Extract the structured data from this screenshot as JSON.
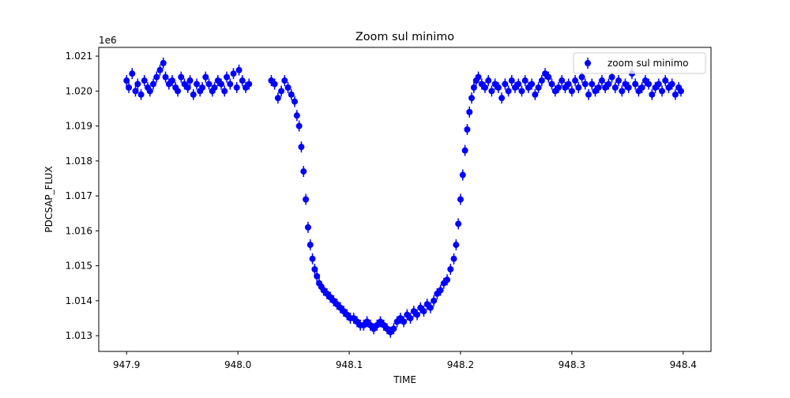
{
  "chart_data": {
    "type": "scatter",
    "title": "Zoom sul minimo",
    "xlabel": "TIME",
    "ylabel": "PDCSAP_FLUX",
    "offset_text": "1e6",
    "xlim": [
      947.875,
      948.425
    ],
    "ylim": [
      1012.55,
      1021.25
    ],
    "y_scale_factor": 1000,
    "xticks": [
      947.9,
      948.0,
      948.1,
      948.2,
      948.3,
      948.4
    ],
    "xtick_labels": [
      "947.9",
      "948.0",
      "948.1",
      "948.2",
      "948.3",
      "948.4"
    ],
    "yticks": [
      1013,
      1014,
      1015,
      1016,
      1017,
      1018,
      1019,
      1020,
      1021
    ],
    "ytick_labels": [
      "1.013",
      "1.014",
      "1.015",
      "1.016",
      "1.017",
      "1.018",
      "1.019",
      "1.020",
      "1.021"
    ],
    "grid": false,
    "legend": {
      "position": "top-right",
      "entries": [
        "zoom sul minimo"
      ]
    },
    "series": [
      {
        "name": "zoom sul minimo",
        "color": "#0000ff",
        "marker": "circle",
        "errorbars": true,
        "x": [
          947.9,
          947.902,
          947.905,
          947.908,
          947.91,
          947.913,
          947.916,
          947.919,
          947.921,
          947.924,
          947.927,
          947.93,
          947.933,
          947.935,
          947.938,
          947.941,
          947.944,
          947.946,
          947.949,
          947.952,
          947.955,
          947.957,
          947.96,
          947.963,
          947.966,
          947.968,
          947.971,
          947.974,
          947.977,
          947.979,
          947.982,
          947.985,
          947.988,
          947.99,
          947.993,
          947.996,
          947.999,
          948.001,
          948.004,
          948.007,
          948.01,
          948.03,
          948.033,
          948.036,
          948.039,
          948.042,
          948.045,
          948.048,
          948.051,
          948.053,
          948.055,
          948.057,
          948.059,
          948.061,
          948.063,
          948.065,
          948.067,
          948.069,
          948.071,
          948.073,
          948.075,
          948.077,
          948.08,
          948.083,
          948.086,
          948.089,
          948.092,
          948.095,
          948.098,
          948.101,
          948.104,
          948.107,
          948.11,
          948.113,
          948.116,
          948.119,
          948.122,
          948.125,
          948.128,
          948.131,
          948.134,
          948.137,
          948.14,
          948.143,
          948.146,
          948.149,
          948.152,
          948.155,
          948.158,
          948.161,
          948.164,
          948.167,
          948.17,
          948.173,
          948.176,
          948.179,
          948.182,
          948.185,
          948.188,
          948.191,
          948.194,
          948.196,
          948.198,
          948.2,
          948.202,
          948.204,
          948.206,
          948.208,
          948.21,
          948.212,
          948.214,
          948.216,
          948.219,
          948.222,
          948.225,
          948.228,
          948.231,
          948.234,
          948.237,
          948.24,
          948.243,
          948.246,
          948.249,
          948.252,
          948.255,
          948.258,
          948.261,
          948.264,
          948.267,
          948.27,
          948.273,
          948.276,
          948.279,
          948.282,
          948.285,
          948.288,
          948.291,
          948.294,
          948.297,
          948.3,
          948.303,
          948.306,
          948.309,
          948.312,
          948.315,
          948.318,
          948.321,
          948.324,
          948.327,
          948.33,
          948.333,
          948.336,
          948.339,
          948.342,
          948.345,
          948.348,
          948.351,
          948.354,
          948.357,
          948.36,
          948.363,
          948.366,
          948.369,
          948.372,
          948.375,
          948.378,
          948.381,
          948.384,
          948.387,
          948.39,
          948.393,
          948.396,
          948.398
        ],
        "y": [
          1020.3,
          1020.1,
          1020.5,
          1020.0,
          1020.2,
          1019.9,
          1020.3,
          1020.1,
          1020.0,
          1020.2,
          1020.4,
          1020.6,
          1020.8,
          1020.4,
          1020.2,
          1020.3,
          1020.1,
          1020.0,
          1020.4,
          1020.2,
          1020.1,
          1020.3,
          1019.9,
          1020.2,
          1020.0,
          1020.1,
          1020.4,
          1020.2,
          1020.0,
          1020.1,
          1020.3,
          1020.2,
          1020.0,
          1020.4,
          1020.2,
          1020.5,
          1020.1,
          1020.6,
          1020.3,
          1020.1,
          1020.2,
          1020.3,
          1020.2,
          1019.8,
          1020.0,
          1020.3,
          1020.1,
          1019.9,
          1019.7,
          1019.3,
          1019.0,
          1018.4,
          1017.7,
          1016.9,
          1016.1,
          1015.6,
          1015.2,
          1014.9,
          1014.7,
          1014.5,
          1014.4,
          1014.3,
          1014.2,
          1014.1,
          1014.0,
          1013.9,
          1013.8,
          1013.7,
          1013.6,
          1013.5,
          1013.5,
          1013.4,
          1013.3,
          1013.3,
          1013.4,
          1013.3,
          1013.2,
          1013.3,
          1013.4,
          1013.3,
          1013.2,
          1013.1,
          1013.2,
          1013.4,
          1013.5,
          1013.4,
          1013.6,
          1013.5,
          1013.7,
          1013.6,
          1013.8,
          1013.7,
          1013.9,
          1013.8,
          1014.0,
          1014.2,
          1014.3,
          1014.5,
          1014.6,
          1014.9,
          1015.2,
          1015.6,
          1016.2,
          1016.9,
          1017.6,
          1018.3,
          1018.9,
          1019.4,
          1019.8,
          1020.1,
          1020.3,
          1020.4,
          1020.2,
          1020.1,
          1020.3,
          1020.0,
          1020.2,
          1020.1,
          1019.8,
          1020.2,
          1020.0,
          1020.3,
          1020.1,
          1020.2,
          1020.0,
          1020.3,
          1020.1,
          1020.2,
          1019.9,
          1020.1,
          1020.3,
          1020.5,
          1020.4,
          1020.2,
          1020.0,
          1020.1,
          1020.3,
          1020.1,
          1020.2,
          1020.0,
          1020.3,
          1020.1,
          1020.4,
          1020.2,
          1019.9,
          1020.2,
          1020.0,
          1020.1,
          1020.3,
          1020.1,
          1020.2,
          1020.4,
          1020.1,
          1020.3,
          1020.0,
          1020.2,
          1020.1,
          1020.5,
          1020.2,
          1020.0,
          1020.1,
          1020.3,
          1020.2,
          1019.9,
          1020.1,
          1020.2,
          1020.0,
          1020.3,
          1020.1,
          1020.2,
          1019.9,
          1020.1,
          1020.0
        ]
      }
    ]
  }
}
